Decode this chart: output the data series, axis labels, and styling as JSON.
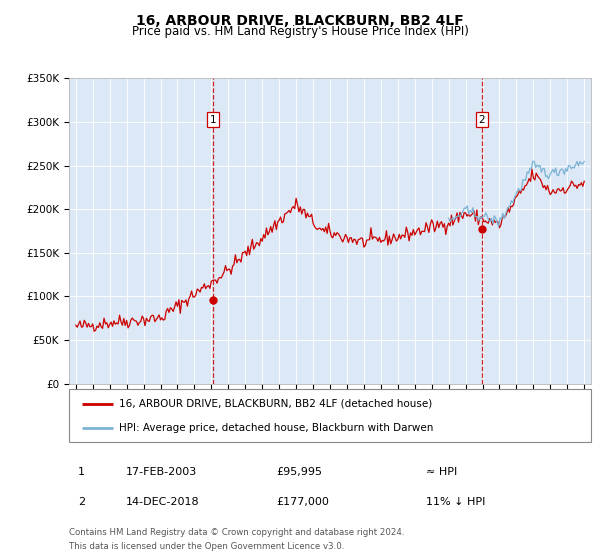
{
  "title": "16, ARBOUR DRIVE, BLACKBURN, BB2 4LF",
  "subtitle": "Price paid vs. HM Land Registry's House Price Index (HPI)",
  "background_color": "#ffffff",
  "plot_bg_color": "#dce8f5",
  "ylim": [
    0,
    350000
  ],
  "yticks": [
    0,
    50000,
    100000,
    150000,
    200000,
    250000,
    300000,
    350000
  ],
  "ytick_labels": [
    "£0",
    "£50K",
    "£100K",
    "£150K",
    "£200K",
    "£250K",
    "£300K",
    "£350K"
  ],
  "xlim_start": 1994.6,
  "xlim_end": 2025.4,
  "hpi_color": "#7ab3d4",
  "price_color": "#cc0000",
  "marker_color": "#cc0000",
  "dashed_line_color": "#cc0000",
  "transaction1_x": 2003.12,
  "transaction1_y": 95995,
  "transaction2_x": 2018.95,
  "transaction2_y": 177000,
  "legend_entries": [
    "16, ARBOUR DRIVE, BLACKBURN, BB2 4LF (detached house)",
    "HPI: Average price, detached house, Blackburn with Darwen"
  ],
  "annotation1_label": "1",
  "annotation1_date": "17-FEB-2003",
  "annotation1_price": "£95,995",
  "annotation1_hpi": "≈ HPI",
  "annotation2_label": "2",
  "annotation2_date": "14-DEC-2018",
  "annotation2_price": "£177,000",
  "annotation2_hpi": "11% ↓ HPI",
  "footer1": "Contains HM Land Registry data © Crown copyright and database right 2024.",
  "footer2": "This data is licensed under the Open Government Licence v3.0."
}
